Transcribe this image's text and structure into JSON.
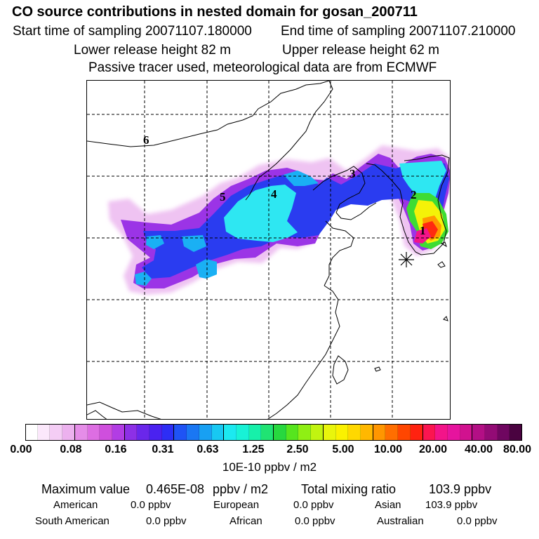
{
  "header": {
    "title": "CO  source contributions in nested domain for gosan_200711",
    "start_time": "Start time of sampling 20071107.180000",
    "end_time": "End time of sampling 20071107.210000",
    "lower_release": "Lower release height   82 m",
    "upper_release": "Upper release height   62 m",
    "tracer_note": "Passive tracer used, meteorological data are from ECMWF"
  },
  "map": {
    "trajectory_labels": [
      "1",
      "2",
      "3",
      "4",
      "5",
      "6"
    ],
    "receptor_marker": "asterisk",
    "grid": "dashed",
    "coastline_color": "#000000"
  },
  "colorbar": {
    "tick_labels": [
      "0.00",
      "0.08",
      "0.16",
      "0.31",
      "0.63",
      "1.25",
      "2.50",
      "5.00",
      "10.00",
      "20.00",
      "40.00",
      "80.00"
    ],
    "colors": [
      "#ffffff",
      "#fbe8fb",
      "#f4cdf5",
      "#ecb1ee",
      "#e58de8",
      "#dd6ee2",
      "#cf4fdd",
      "#b23de4",
      "#8d30e6",
      "#6a27ea",
      "#4a22f0",
      "#2d2ef5",
      "#1f53f5",
      "#1a77f3",
      "#18a0f3",
      "#18c8f2",
      "#1ce9f0",
      "#18f2d6",
      "#17f0aa",
      "#20e373",
      "#27d83f",
      "#56e51e",
      "#8fef14",
      "#c1f410",
      "#e9f50c",
      "#fbf100",
      "#ffd800",
      "#ffb800",
      "#ff9600",
      "#ff6e00",
      "#ff4600",
      "#ff2210",
      "#fb1550",
      "#f31489",
      "#e6149e",
      "#d1128f",
      "#b30f85",
      "#930b75",
      "#6f0660",
      "#4a0340"
    ],
    "unit": "10E-10 ppbv / m2"
  },
  "stats": {
    "max_label": "Maximum value",
    "max_value": "0.465E-08",
    "max_unit": "ppbv / m2",
    "total_label": "Total mixing ratio",
    "total_value": "103.9 ppbv",
    "american_label": "American",
    "american_value": "0.0 ppbv",
    "european_label": "European",
    "european_value": "0.0 ppbv",
    "asian_label": "Asian",
    "asian_value": "103.9 ppbv",
    "south_american_label": "South American",
    "south_american_value": "0.0 ppbv",
    "african_label": "African",
    "african_value": "0.0 ppbv",
    "australian_label": "Australian",
    "australian_value": "0.0 ppbv"
  }
}
